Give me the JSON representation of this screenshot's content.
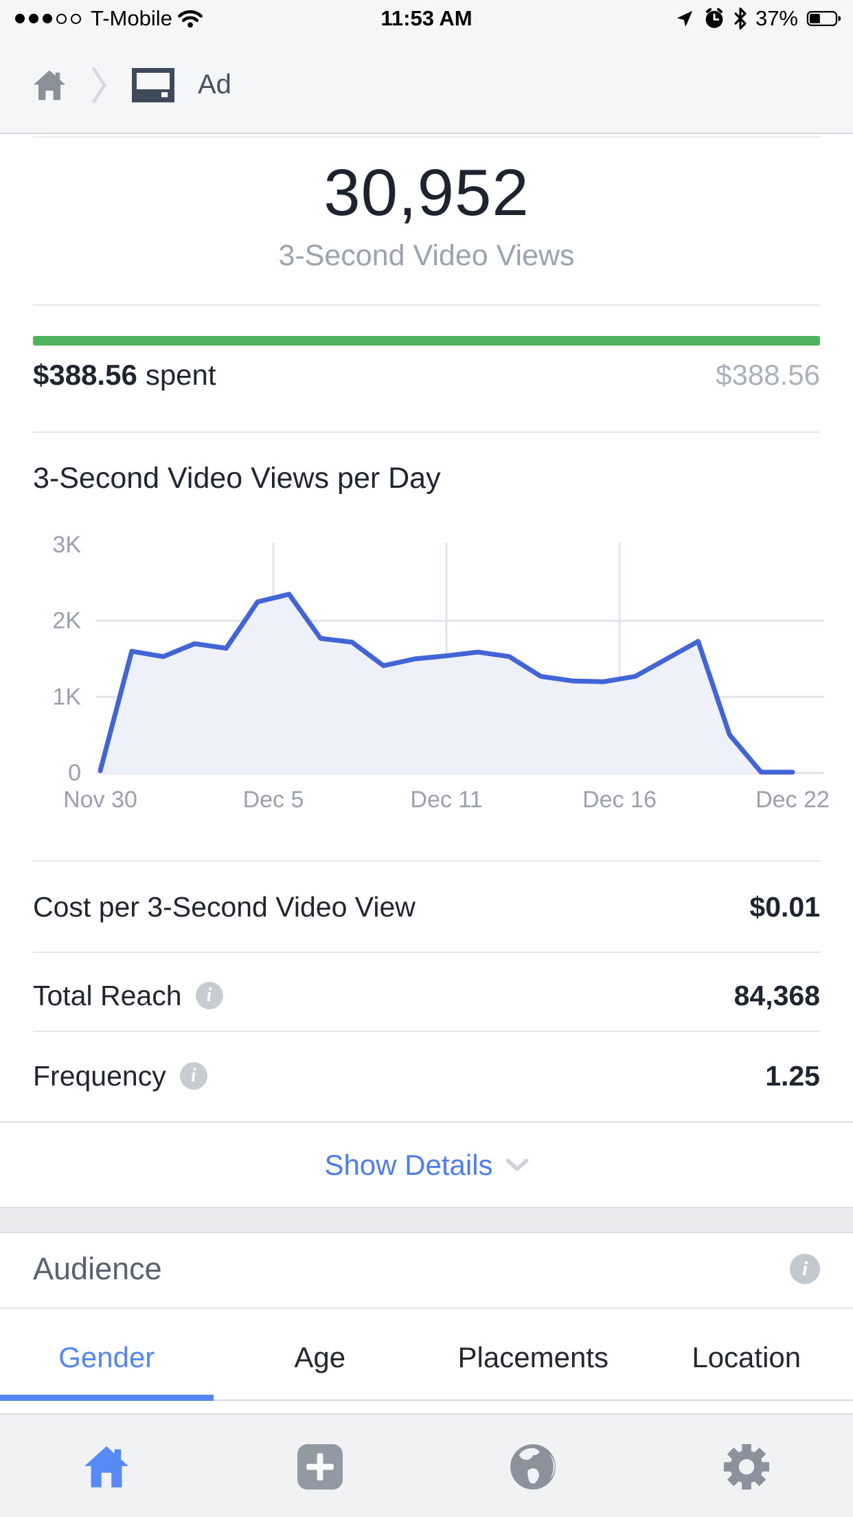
{
  "status_bar": {
    "carrier": "T-Mobile",
    "time": "11:53 AM",
    "battery_percent": "37%",
    "signal_dots_filled": 3,
    "signal_dots_total": 5,
    "right_icons": [
      "location-arrow",
      "alarm-clock",
      "bluetooth",
      "battery"
    ]
  },
  "breadcrumb": {
    "title": "Ad"
  },
  "metric": {
    "value": "30,952",
    "label": "3-Second Video Views"
  },
  "budget": {
    "spent_amount": "$388.56",
    "spent_suffix": "spent",
    "total": "$388.56",
    "progress_color": "#4eb45e",
    "progress_percent": 100
  },
  "chart_data": {
    "type": "line",
    "title": "3-Second Video Views per Day",
    "x": [
      "Nov 30",
      "Dec 1",
      "Dec 2",
      "Dec 3",
      "Dec 4",
      "Dec 5",
      "Dec 6",
      "Dec 7",
      "Dec 8",
      "Dec 9",
      "Dec 10",
      "Dec 11",
      "Dec 12",
      "Dec 13",
      "Dec 14",
      "Dec 15",
      "Dec 16",
      "Dec 17",
      "Dec 18",
      "Dec 19",
      "Dec 20",
      "Dec 21",
      "Dec 22"
    ],
    "values": [
      30,
      1600,
      1530,
      1700,
      1640,
      2250,
      2350,
      1770,
      1720,
      1410,
      1500,
      1540,
      1590,
      1530,
      1270,
      1210,
      1200,
      1270,
      1500,
      1730,
      500,
      10,
      10
    ],
    "x_tick_labels": [
      "Nov 30",
      "Dec 5",
      "Dec 11",
      "Dec 16",
      "Dec 22"
    ],
    "y_ticks": [
      0,
      1000,
      2000,
      3000
    ],
    "y_tick_labels": [
      "0",
      "1K",
      "2K",
      "3K"
    ],
    "ylim": [
      0,
      3000
    ],
    "grid": true,
    "legend": "none",
    "line_color": "#4165d6",
    "fill_color": "#eef1f9",
    "grid_color": "#e2e4eb",
    "axis_text_color": "#9aa1ac"
  },
  "stats": [
    {
      "label": "Cost per 3-Second Video View",
      "value": "$0.01",
      "has_info": false
    },
    {
      "label": "Total Reach",
      "value": "84,368",
      "has_info": true
    },
    {
      "label": "Frequency",
      "value": "1.25",
      "has_info": true
    }
  ],
  "show_details": {
    "label": "Show Details"
  },
  "audience": {
    "title": "Audience",
    "tabs": [
      {
        "label": "Gender",
        "active": true
      },
      {
        "label": "Age",
        "active": false
      },
      {
        "label": "Placements",
        "active": false
      },
      {
        "label": "Location",
        "active": false
      }
    ],
    "accent_color": "#5486f5"
  },
  "bottom_nav": {
    "items": [
      "home",
      "create",
      "world",
      "settings"
    ],
    "active_color": "#568af6",
    "inactive_color": "#8f969f"
  }
}
